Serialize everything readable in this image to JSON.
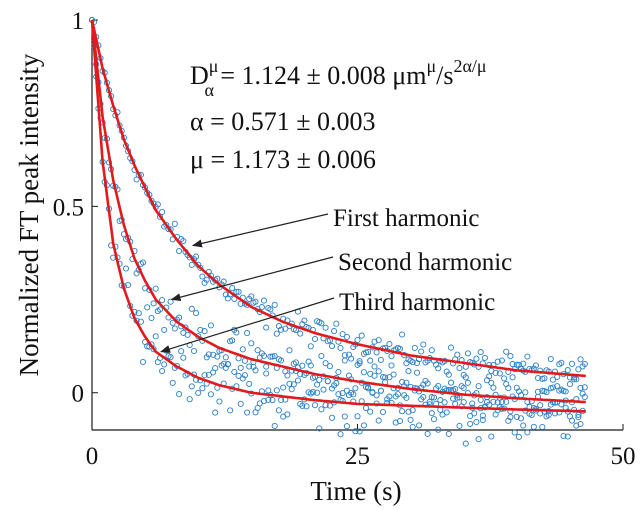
{
  "chart_data": {
    "type": "scatter",
    "title": "",
    "xlabel": "Time (s)",
    "ylabel": "Normalized FT peak intensity",
    "xlim": [
      0,
      50
    ],
    "ylim": [
      -0.1,
      1
    ],
    "xticks": [
      0,
      25,
      50
    ],
    "xtick_labels": [
      "0",
      "25",
      "50"
    ],
    "yticks": [
      0,
      0.5,
      1
    ],
    "ytick_labels": [
      "0",
      "0.5",
      "1"
    ],
    "grid": false,
    "legend": "none",
    "colors": {
      "points": "#2a7fc7",
      "fit": "#e31a1c",
      "axes": "#1a1a1a",
      "arrow": "#222222"
    },
    "fit_parameters": {
      "line1_main": "D",
      "line1_sub": "α",
      "line1_sup": "μ",
      "line1_rest": " = 1.124 ± 0.008 μm",
      "line1_unit_sup": "μ",
      "line1_unit_mid": "/s",
      "line1_unit_sup2": "2α/μ",
      "line2": "α = 0.571 ± 0.003",
      "line3": "μ = 1.173 ± 0.006"
    },
    "annotations": [
      {
        "text": "First harmonic",
        "arrow_to": [
          9.5,
          0.395
        ]
      },
      {
        "text": "Second harmonic",
        "arrow_to": [
          7.5,
          0.25
        ]
      },
      {
        "text": "Third harmonic",
        "arrow_to": [
          6.5,
          0.11
        ]
      }
    ],
    "series": [
      {
        "fit_values": {
          "x": [
            0,
            1,
            2,
            3,
            4,
            5,
            6,
            8,
            10,
            12,
            15,
            18,
            21,
            25,
            30,
            35,
            40,
            46.5
          ],
          "y": [
            1.0,
            0.87,
            0.77,
            0.68,
            0.61,
            0.55,
            0.49,
            0.41,
            0.34,
            0.29,
            0.23,
            0.19,
            0.16,
            0.13,
            0.1,
            0.08,
            0.06,
            0.045
          ]
        },
        "scatter_noise": 0.012
      },
      {
        "fit_values": {
          "x": [
            0,
            1,
            2,
            3,
            4,
            5,
            6,
            8,
            10,
            12,
            15,
            18,
            21,
            25,
            30,
            35,
            40,
            46.5
          ],
          "y": [
            1.0,
            0.74,
            0.57,
            0.45,
            0.36,
            0.3,
            0.25,
            0.19,
            0.15,
            0.12,
            0.09,
            0.07,
            0.05,
            0.03,
            0.01,
            -0.005,
            -0.015,
            -0.025
          ]
        },
        "scatter_noise": 0.02
      },
      {
        "fit_values": {
          "x": [
            0,
            1,
            2,
            3,
            4,
            5,
            6,
            8,
            10,
            12,
            15,
            18,
            21,
            25,
            30,
            35,
            40,
            46.5
          ],
          "y": [
            1.0,
            0.62,
            0.4,
            0.28,
            0.2,
            0.15,
            0.11,
            0.07,
            0.04,
            0.02,
            0.0,
            -0.01,
            -0.02,
            -0.03,
            -0.035,
            -0.04,
            -0.045,
            -0.05
          ]
        },
        "scatter_noise": 0.025
      }
    ]
  }
}
